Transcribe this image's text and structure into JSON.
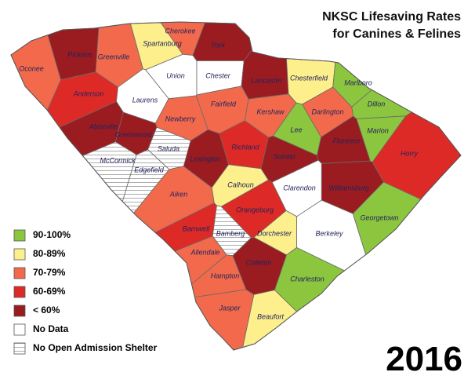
{
  "title": [
    "NKSC Lifesaving Rates",
    "for Canines & Felines"
  ],
  "year": "2016",
  "legend": [
    {
      "label": "90-100%",
      "color": "#8cc63f"
    },
    {
      "label": "80-89%",
      "color": "#fcef8c"
    },
    {
      "label": "70-79%",
      "color": "#f26a4b"
    },
    {
      "label": "60-69%",
      "color": "#de2a26"
    },
    {
      "label": "< 60%",
      "color": "#9a1c20"
    },
    {
      "label": "No Data",
      "color": "#ffffff"
    },
    {
      "label": "No Open Admission Shelter",
      "color": "#ffffff",
      "pattern": "hatch"
    }
  ],
  "counties": [
    {
      "name": "Oconee",
      "category": "70-79%"
    },
    {
      "name": "Pickens",
      "category": "< 60%"
    },
    {
      "name": "Greenville",
      "category": "70-79%"
    },
    {
      "name": "Spartanburg",
      "category": "80-89%"
    },
    {
      "name": "Cherokee",
      "category": "70-79%"
    },
    {
      "name": "York",
      "category": "< 60%"
    },
    {
      "name": "Union",
      "category": "No Data"
    },
    {
      "name": "Chester",
      "category": "No Data"
    },
    {
      "name": "Lancaster",
      "category": "< 60%"
    },
    {
      "name": "Chesterfield",
      "category": "80-89%"
    },
    {
      "name": "Marlboro",
      "category": "90-100%"
    },
    {
      "name": "Dillon",
      "category": "90-100%"
    },
    {
      "name": "Laurens",
      "category": "No Data"
    },
    {
      "name": "Anderson",
      "category": "60-69%"
    },
    {
      "name": "Abbeville",
      "category": "< 60%"
    },
    {
      "name": "Greenwood",
      "category": "< 60%"
    },
    {
      "name": "Newberry",
      "category": "70-79%"
    },
    {
      "name": "Fairfield",
      "category": "70-79%"
    },
    {
      "name": "Kershaw",
      "category": "70-79%"
    },
    {
      "name": "Lee",
      "category": "90-100%"
    },
    {
      "name": "Darlington",
      "category": "70-79%"
    },
    {
      "name": "Marion",
      "category": "90-100%"
    },
    {
      "name": "Florence",
      "category": "< 60%"
    },
    {
      "name": "Horry",
      "category": "60-69%"
    },
    {
      "name": "McCormick",
      "category": "No Open Admission Shelter"
    },
    {
      "name": "Saluda",
      "category": "No Open Admission Shelter"
    },
    {
      "name": "Edgefield",
      "category": "No Open Admission Shelter"
    },
    {
      "name": "Lexington",
      "category": "< 60%"
    },
    {
      "name": "Richland",
      "category": "60-69%"
    },
    {
      "name": "Sumter",
      "category": "< 60%"
    },
    {
      "name": "Calhoun",
      "category": "80-89%"
    },
    {
      "name": "Clarendon",
      "category": "No Data"
    },
    {
      "name": "Williamsburg",
      "category": "< 60%"
    },
    {
      "name": "Georgetown",
      "category": "90-100%"
    },
    {
      "name": "Aiken",
      "category": "70-79%"
    },
    {
      "name": "Orangeburg",
      "category": "60-69%"
    },
    {
      "name": "Barnwell",
      "category": "60-69%"
    },
    {
      "name": "Bamberg",
      "category": "No Open Admission Shelter"
    },
    {
      "name": "Dorchester",
      "category": "80-89%"
    },
    {
      "name": "Berkeley",
      "category": "No Data"
    },
    {
      "name": "Allendale",
      "category": "70-79%"
    },
    {
      "name": "Colleton",
      "category": "< 60%"
    },
    {
      "name": "Hampton",
      "category": "70-79%"
    },
    {
      "name": "Charleston",
      "category": "90-100%"
    },
    {
      "name": "Jasper",
      "category": "70-79%"
    },
    {
      "name": "Beaufort",
      "category": "80-89%"
    }
  ]
}
